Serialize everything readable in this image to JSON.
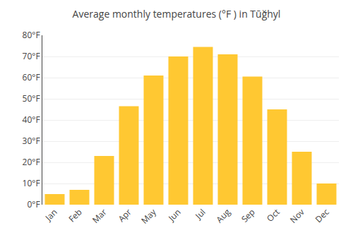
{
  "chart_data": {
    "type": "bar",
    "title": "Average monthly temperatures (°F ) in Tūğhyl",
    "categories": [
      "Jan",
      "Feb",
      "Mar",
      "Apr",
      "May",
      "Jun",
      "Jul",
      "Aug",
      "Sep",
      "Oct",
      "Nov",
      "Dec"
    ],
    "values": [
      5,
      7,
      23,
      46.5,
      61,
      70,
      74.5,
      71,
      60.5,
      45,
      25,
      10
    ],
    "color": "#FFC832",
    "ylim": [
      0,
      80
    ],
    "yticks": [
      {
        "value": 0,
        "label": "0°F"
      },
      {
        "value": 10,
        "label": "10°F"
      },
      {
        "value": 20,
        "label": "20°F"
      },
      {
        "value": 30,
        "label": "30°F"
      },
      {
        "value": 40,
        "label": "40°F"
      },
      {
        "value": 50,
        "label": "50°F"
      },
      {
        "value": 60,
        "label": "60°F"
      },
      {
        "value": 70,
        "label": "70°F"
      },
      {
        "value": 80,
        "label": "80°F"
      }
    ],
    "grid": true
  }
}
